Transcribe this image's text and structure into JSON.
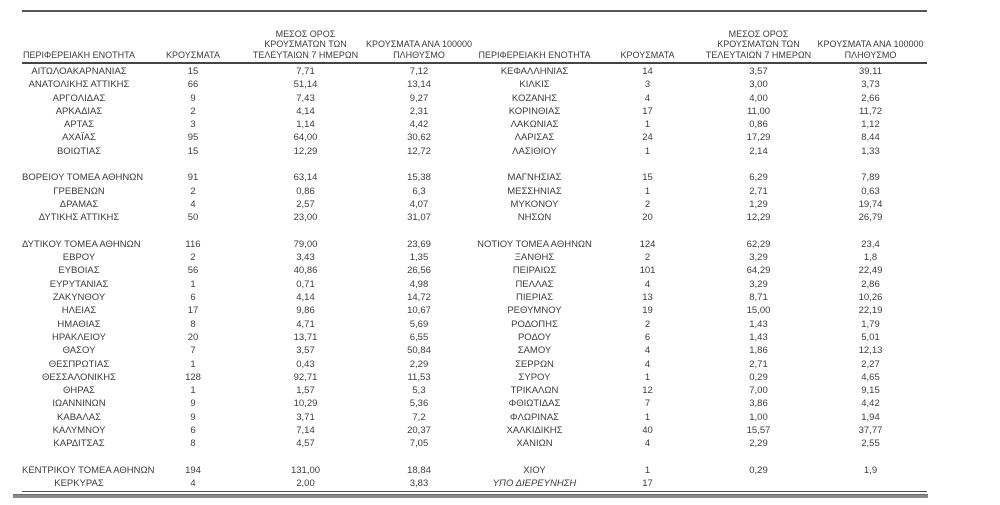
{
  "colors": {
    "text": "#3d3d3d",
    "rule_dark": "#454545",
    "rule_gray": "#8a8a8a",
    "background": "#ffffff"
  },
  "table": {
    "headers": {
      "region": "ΠΕΡΙΦΕΡΕΙΑΚΗ ΕΝΟΤΗΤΑ",
      "cases": "ΚΡΟΥΣΜΑΤΑ",
      "avg7_lines": [
        "ΜΕΣΟΣ ΟΡΟΣ",
        "ΚΡΟΥΣΜΑΤΩΝ ΤΩΝ",
        "ΤΕΛΕΥΤΑΙΩΝ 7 ΗΜΕΡΩΝ"
      ],
      "per100k_lines": [
        "ΚΡΟΥΣΜΑΤΑ ΑΝΑ 100000",
        "ΠΛΗΘΥΣΜΟ"
      ]
    },
    "italic_regions": [
      "ΥΠΟ ΔΙΕΡΕΥΝΗΣΗ"
    ],
    "left_rows": [
      [
        "ΑΙΤΩΛΟΑΚΑΡΝΑΝΙΑΣ",
        "15",
        "7,71",
        "7,12"
      ],
      [
        "ΑΝΑΤΟΛΙΚΗΣ ΑΤΤΙΚΗΣ",
        "66",
        "51,14",
        "13,14"
      ],
      [
        "ΑΡΓΟΛΙΔΑΣ",
        "9",
        "7,43",
        "9,27"
      ],
      [
        "ΑΡΚΑΔΙΑΣ",
        "2",
        "4,14",
        "2,31"
      ],
      [
        "ΑΡΤΑΣ",
        "3",
        "1,14",
        "4,42"
      ],
      [
        "ΑΧΑΪΑΣ",
        "95",
        "64,00",
        "30,62"
      ],
      [
        "ΒΟΙΩΤΙΑΣ",
        "15",
        "12,29",
        "12,72"
      ],
      null,
      [
        "ΒΟΡΕΙΟΥ ΤΟΜΕΑ ΑΘΗΝΩΝ",
        "91",
        "63,14",
        "15,38"
      ],
      [
        "ΓΡΕΒΕΝΩΝ",
        "2",
        "0,86",
        "6,3"
      ],
      [
        "ΔΡΑΜΑΣ",
        "4",
        "2,57",
        "4,07"
      ],
      [
        "ΔΥΤΙΚΗΣ ΑΤΤΙΚΗΣ",
        "50",
        "23,00",
        "31,07"
      ],
      null,
      [
        "ΔΥΤΙΚΟΥ ΤΟΜΕΑ ΑΘΗΝΩΝ",
        "116",
        "79,00",
        "23,69"
      ],
      [
        "ΕΒΡΟΥ",
        "2",
        "3,43",
        "1,35"
      ],
      [
        "ΕΥΒΟΙΑΣ",
        "56",
        "40,86",
        "26,56"
      ],
      [
        "ΕΥΡΥΤΑΝΙΑΣ",
        "1",
        "0,71",
        "4,98"
      ],
      [
        "ΖΑΚΥΝΘΟΥ",
        "6",
        "4,14",
        "14,72"
      ],
      [
        "ΗΛΕΙΑΣ",
        "17",
        "9,86",
        "10,67"
      ],
      [
        "ΗΜΑΘΙΑΣ",
        "8",
        "4,71",
        "5,69"
      ],
      [
        "ΗΡΑΚΛΕΙΟΥ",
        "20",
        "13,71",
        "6,55"
      ],
      [
        "ΘΑΣΟΥ",
        "7",
        "3,57",
        "50,84"
      ],
      [
        "ΘΕΣΠΡΩΤΙΑΣ",
        "1",
        "0,43",
        "2,29"
      ],
      [
        "ΘΕΣΣΑΛΟΝΙΚΗΣ",
        "128",
        "92,71",
        "11,53"
      ],
      [
        "ΘΗΡΑΣ",
        "1",
        "1,57",
        "5,3"
      ],
      [
        "ΙΩΑΝΝΙΝΩΝ",
        "9",
        "10,29",
        "5,36"
      ],
      [
        "ΚΑΒΑΛΑΣ",
        "9",
        "3,71",
        "7,2"
      ],
      [
        "ΚΑΛΥΜΝΟΥ",
        "6",
        "7,14",
        "20,37"
      ],
      [
        "ΚΑΡΔΙΤΣΑΣ",
        "8",
        "4,57",
        "7,05"
      ],
      null,
      [
        "ΚΕΝΤΡΙΚΟΥ ΤΟΜΕΑ ΑΘΗΝΩΝ",
        "194",
        "131,00",
        "18,84"
      ],
      [
        "ΚΕΡΚΥΡΑΣ",
        "4",
        "2,00",
        "3,83"
      ]
    ],
    "right_rows": [
      [
        "ΚΕΦΑΛΛΗΝΙΑΣ",
        "14",
        "3,57",
        "39,11"
      ],
      [
        "ΚΙΛΚΙΣ",
        "3",
        "3,00",
        "3,73"
      ],
      [
        "ΚΟΖΑΝΗΣ",
        "4",
        "4,00",
        "2,66"
      ],
      [
        "ΚΟΡΙΝΘΙΑΣ",
        "17",
        "11,00",
        "11,72"
      ],
      [
        "ΛΑΚΩΝΙΑΣ",
        "1",
        "0,86",
        "1,12"
      ],
      [
        "ΛΑΡΙΣΑΣ",
        "24",
        "17,29",
        "8,44"
      ],
      [
        "ΛΑΣΙΘΙΟΥ",
        "1",
        "2,14",
        "1,33"
      ],
      null,
      [
        "ΜΑΓΝΗΣΙΑΣ",
        "15",
        "6,29",
        "7,89"
      ],
      [
        "ΜΕΣΣΗΝΙΑΣ",
        "1",
        "2,71",
        "0,63"
      ],
      [
        "ΜΥΚΟΝΟΥ",
        "2",
        "1,29",
        "19,74"
      ],
      [
        "ΝΗΣΩΝ",
        "20",
        "12,29",
        "26,79"
      ],
      null,
      [
        "ΝΟΤΙΟΥ ΤΟΜΕΑ ΑΘΗΝΩΝ",
        "124",
        "62,29",
        "23,4"
      ],
      [
        "ΞΑΝΘΗΣ",
        "2",
        "3,29",
        "1,8"
      ],
      [
        "ΠΕΙΡΑΙΩΣ",
        "101",
        "64,29",
        "22,49"
      ],
      [
        "ΠΕΛΛΑΣ",
        "4",
        "3,29",
        "2,86"
      ],
      [
        "ΠΙΕΡΙΑΣ",
        "13",
        "8,71",
        "10,26"
      ],
      [
        "ΡΕΘΥΜΝΟΥ",
        "19",
        "15,00",
        "22,19"
      ],
      [
        "ΡΟΔΟΠΗΣ",
        "2",
        "1,43",
        "1,79"
      ],
      [
        "ΡΟΔΟΥ",
        "6",
        "1,43",
        "5,01"
      ],
      [
        "ΣΑΜΟΥ",
        "4",
        "1,86",
        "12,13"
      ],
      [
        "ΣΕΡΡΩΝ",
        "4",
        "2,71",
        "2,27"
      ],
      [
        "ΣΥΡΟΥ",
        "1",
        "0,29",
        "4,65"
      ],
      [
        "ΤΡΙΚΑΛΩΝ",
        "12",
        "7,00",
        "9,15"
      ],
      [
        "ΦΘΙΩΤΙΔΑΣ",
        "7",
        "3,86",
        "4,42"
      ],
      [
        "ΦΛΩΡΙΝΑΣ",
        "1",
        "1,00",
        "1,94"
      ],
      [
        "ΧΑΛΚΙΔΙΚΗΣ",
        "40",
        "15,57",
        "37,77"
      ],
      [
        "ΧΑΝΙΩΝ",
        "4",
        "2,29",
        "2,55"
      ],
      null,
      [
        "ΧΙΟΥ",
        "1",
        "0,29",
        "1,9"
      ],
      [
        "ΥΠΟ ΔΙΕΡΕΥΝΗΣΗ",
        "17",
        "",
        ""
      ]
    ]
  }
}
